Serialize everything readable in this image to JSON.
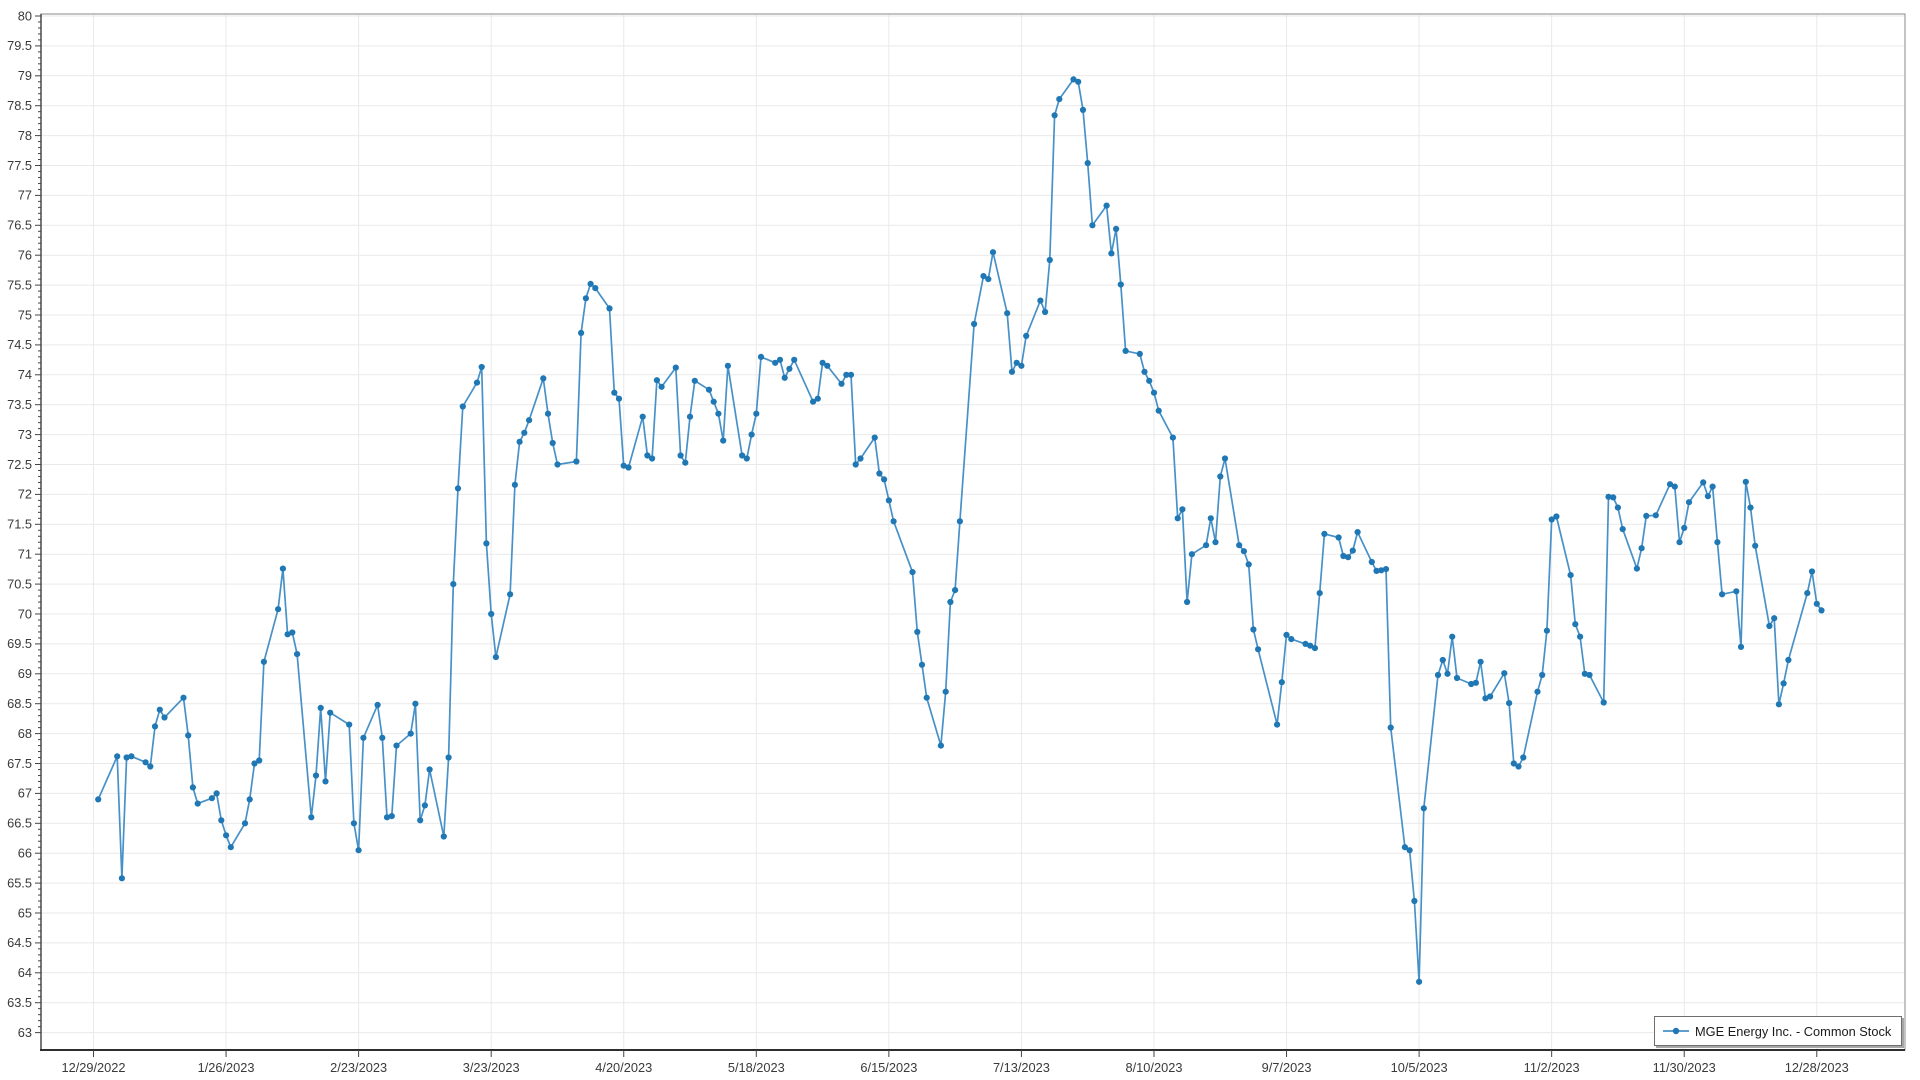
{
  "legend": {
    "label": "MGE Energy Inc. - Common Stock"
  },
  "chart_data": {
    "type": "line",
    "title": "",
    "series_name": "MGE Energy Inc. - Common Stock",
    "xlabel": "",
    "ylabel": "",
    "ylim": [
      63,
      80
    ],
    "y_tick_step": 0.5,
    "grid": true,
    "legend_position": "bottom-right",
    "line_color": "#4791c8",
    "marker_color": "#1f77b4",
    "grid_color": "#e9e9e9",
    "axis_color": "#444444",
    "x_first_tick": "2022-12-29",
    "x_tick_interval_days": 28,
    "x_tick_labels": [
      "12/29/2022",
      "1/26/2023",
      "2/23/2023",
      "3/23/2023",
      "4/20/2023",
      "5/18/2023",
      "6/15/2023",
      "7/13/2023",
      "8/10/2023",
      "9/7/2023",
      "10/5/2023",
      "11/2/2023",
      "11/30/2023",
      "12/28/2023"
    ],
    "dates": [
      "2022-12-30",
      "2023-01-03",
      "2023-01-04",
      "2023-01-05",
      "2023-01-06",
      "2023-01-09",
      "2023-01-10",
      "2023-01-11",
      "2023-01-12",
      "2023-01-13",
      "2023-01-17",
      "2023-01-18",
      "2023-01-19",
      "2023-01-20",
      "2023-01-23",
      "2023-01-24",
      "2023-01-25",
      "2023-01-26",
      "2023-01-27",
      "2023-01-30",
      "2023-01-31",
      "2023-02-01",
      "2023-02-02",
      "2023-02-03",
      "2023-02-06",
      "2023-02-07",
      "2023-02-08",
      "2023-02-09",
      "2023-02-10",
      "2023-02-13",
      "2023-02-14",
      "2023-02-15",
      "2023-02-16",
      "2023-02-17",
      "2023-02-21",
      "2023-02-22",
      "2023-02-23",
      "2023-02-24",
      "2023-02-27",
      "2023-02-28",
      "2023-03-01",
      "2023-03-02",
      "2023-03-03",
      "2023-03-06",
      "2023-03-07",
      "2023-03-08",
      "2023-03-09",
      "2023-03-10",
      "2023-03-13",
      "2023-03-14",
      "2023-03-15",
      "2023-03-16",
      "2023-03-17",
      "2023-03-20",
      "2023-03-21",
      "2023-03-22",
      "2023-03-23",
      "2023-03-24",
      "2023-03-27",
      "2023-03-28",
      "2023-03-29",
      "2023-03-30",
      "2023-03-31",
      "2023-04-03",
      "2023-04-04",
      "2023-04-05",
      "2023-04-06",
      "2023-04-10",
      "2023-04-11",
      "2023-04-12",
      "2023-04-13",
      "2023-04-14",
      "2023-04-17",
      "2023-04-18",
      "2023-04-19",
      "2023-04-20",
      "2023-04-21",
      "2023-04-24",
      "2023-04-25",
      "2023-04-26",
      "2023-04-27",
      "2023-04-28",
      "2023-05-01",
      "2023-05-02",
      "2023-05-03",
      "2023-05-04",
      "2023-05-05",
      "2023-05-08",
      "2023-05-09",
      "2023-05-10",
      "2023-05-11",
      "2023-05-12",
      "2023-05-15",
      "2023-05-16",
      "2023-05-17",
      "2023-05-18",
      "2023-05-19",
      "2023-05-22",
      "2023-05-23",
      "2023-05-24",
      "2023-05-25",
      "2023-05-26",
      "2023-05-30",
      "2023-05-31",
      "2023-06-01",
      "2023-06-02",
      "2023-06-05",
      "2023-06-06",
      "2023-06-07",
      "2023-06-08",
      "2023-06-09",
      "2023-06-12",
      "2023-06-13",
      "2023-06-14",
      "2023-06-15",
      "2023-06-16",
      "2023-06-20",
      "2023-06-21",
      "2023-06-22",
      "2023-06-23",
      "2023-06-26",
      "2023-06-27",
      "2023-06-28",
      "2023-06-29",
      "2023-06-30",
      "2023-07-03",
      "2023-07-05",
      "2023-07-06",
      "2023-07-07",
      "2023-07-10",
      "2023-07-11",
      "2023-07-12",
      "2023-07-13",
      "2023-07-14",
      "2023-07-17",
      "2023-07-18",
      "2023-07-19",
      "2023-07-20",
      "2023-07-21",
      "2023-07-24",
      "2023-07-25",
      "2023-07-26",
      "2023-07-27",
      "2023-07-28",
      "2023-07-31",
      "2023-08-01",
      "2023-08-02",
      "2023-08-03",
      "2023-08-04",
      "2023-08-07",
      "2023-08-08",
      "2023-08-09",
      "2023-08-10",
      "2023-08-11",
      "2023-08-14",
      "2023-08-15",
      "2023-08-16",
      "2023-08-17",
      "2023-08-18",
      "2023-08-21",
      "2023-08-22",
      "2023-08-23",
      "2023-08-24",
      "2023-08-25",
      "2023-08-28",
      "2023-08-29",
      "2023-08-30",
      "2023-08-31",
      "2023-09-01",
      "2023-09-05",
      "2023-09-06",
      "2023-09-07",
      "2023-09-08",
      "2023-09-11",
      "2023-09-12",
      "2023-09-13",
      "2023-09-14",
      "2023-09-15",
      "2023-09-18",
      "2023-09-19",
      "2023-09-20",
      "2023-09-21",
      "2023-09-22",
      "2023-09-25",
      "2023-09-26",
      "2023-09-27",
      "2023-09-28",
      "2023-09-29",
      "2023-10-02",
      "2023-10-03",
      "2023-10-04",
      "2023-10-05",
      "2023-10-06",
      "2023-10-09",
      "2023-10-10",
      "2023-10-11",
      "2023-10-12",
      "2023-10-13",
      "2023-10-16",
      "2023-10-17",
      "2023-10-18",
      "2023-10-19",
      "2023-10-20",
      "2023-10-23",
      "2023-10-24",
      "2023-10-25",
      "2023-10-26",
      "2023-10-27",
      "2023-10-30",
      "2023-10-31",
      "2023-11-01",
      "2023-11-02",
      "2023-11-03",
      "2023-11-06",
      "2023-11-07",
      "2023-11-08",
      "2023-11-09",
      "2023-11-10",
      "2023-11-13",
      "2023-11-14",
      "2023-11-15",
      "2023-11-16",
      "2023-11-17",
      "2023-11-20",
      "2023-11-21",
      "2023-11-22",
      "2023-11-24",
      "2023-11-27",
      "2023-11-28",
      "2023-11-29",
      "2023-11-30",
      "2023-12-01",
      "2023-12-04",
      "2023-12-05",
      "2023-12-06",
      "2023-12-07",
      "2023-12-08",
      "2023-12-11",
      "2023-12-12",
      "2023-12-13",
      "2023-12-14",
      "2023-12-15",
      "2023-12-18",
      "2023-12-19",
      "2023-12-20",
      "2023-12-21",
      "2023-12-22",
      "2023-12-26",
      "2023-12-27",
      "2023-12-28",
      "2023-12-29"
    ],
    "values": [
      66.9,
      67.62,
      65.58,
      67.6,
      67.62,
      67.52,
      67.45,
      68.12,
      68.4,
      68.27,
      68.6,
      67.97,
      67.1,
      66.83,
      66.92,
      67.0,
      66.55,
      66.3,
      66.1,
      66.5,
      66.9,
      67.5,
      67.55,
      69.2,
      70.08,
      70.76,
      69.66,
      69.69,
      69.33,
      66.6,
      67.3,
      68.43,
      67.2,
      68.35,
      68.15,
      66.5,
      66.05,
      67.93,
      68.48,
      67.93,
      66.6,
      66.62,
      67.8,
      68.0,
      68.5,
      66.55,
      66.8,
      67.4,
      66.28,
      67.6,
      70.5,
      72.1,
      73.47,
      73.87,
      74.13,
      71.18,
      70.0,
      69.28,
      70.33,
      72.16,
      72.88,
      73.03,
      73.24,
      73.94,
      73.35,
      72.86,
      72.5,
      72.55,
      74.7,
      75.28,
      75.52,
      75.45,
      75.11,
      73.7,
      73.6,
      72.48,
      72.45,
      73.3,
      72.65,
      72.6,
      73.91,
      73.8,
      74.12,
      72.65,
      72.53,
      73.3,
      73.9,
      73.75,
      73.55,
      73.35,
      72.9,
      74.15,
      72.65,
      72.6,
      73.0,
      73.35,
      74.3,
      74.2,
      74.25,
      73.95,
      74.1,
      74.25,
      73.55,
      73.6,
      74.2,
      74.15,
      73.85,
      74.0,
      74.0,
      72.5,
      72.6,
      72.95,
      72.35,
      72.25,
      71.9,
      71.55,
      70.7,
      69.7,
      69.15,
      68.6,
      67.8,
      68.7,
      70.2,
      70.4,
      71.55,
      74.85,
      75.65,
      75.6,
      76.05,
      75.03,
      74.05,
      74.2,
      74.15,
      74.65,
      75.24,
      75.05,
      75.92,
      78.34,
      78.61,
      78.94,
      78.9,
      78.43,
      77.54,
      76.5,
      76.83,
      76.03,
      76.44,
      75.51,
      74.4,
      74.35,
      74.05,
      73.9,
      73.7,
      73.4,
      72.95,
      71.6,
      71.75,
      70.2,
      71.0,
      71.15,
      71.6,
      71.2,
      72.3,
      72.6,
      71.15,
      71.05,
      70.83,
      69.74,
      69.41,
      68.15,
      68.86,
      69.65,
      69.58,
      69.5,
      69.47,
      69.43,
      70.35,
      71.34,
      71.28,
      70.97,
      70.95,
      71.06,
      71.37,
      70.87,
      70.72,
      70.73,
      70.75,
      68.1,
      66.1,
      66.05,
      65.2,
      63.85,
      66.75,
      68.98,
      69.23,
      69.0,
      69.62,
      68.93,
      68.83,
      68.85,
      69.2,
      68.59,
      68.62,
      69.01,
      68.51,
      67.5,
      67.45,
      67.6,
      68.7,
      68.98,
      69.72,
      71.58,
      71.63,
      70.65,
      69.83,
      69.62,
      69.0,
      68.98,
      68.52,
      71.96,
      71.95,
      71.78,
      71.42,
      70.76,
      71.1,
      71.64,
      71.65,
      72.17,
      72.13,
      71.2,
      71.44,
      71.87,
      72.2,
      71.97,
      72.13,
      71.2,
      70.33,
      70.38,
      69.45,
      72.21,
      71.78,
      71.14,
      69.8,
      69.93,
      68.49,
      68.84,
      69.23,
      70.35,
      70.71,
      70.17,
      70.06
    ]
  }
}
